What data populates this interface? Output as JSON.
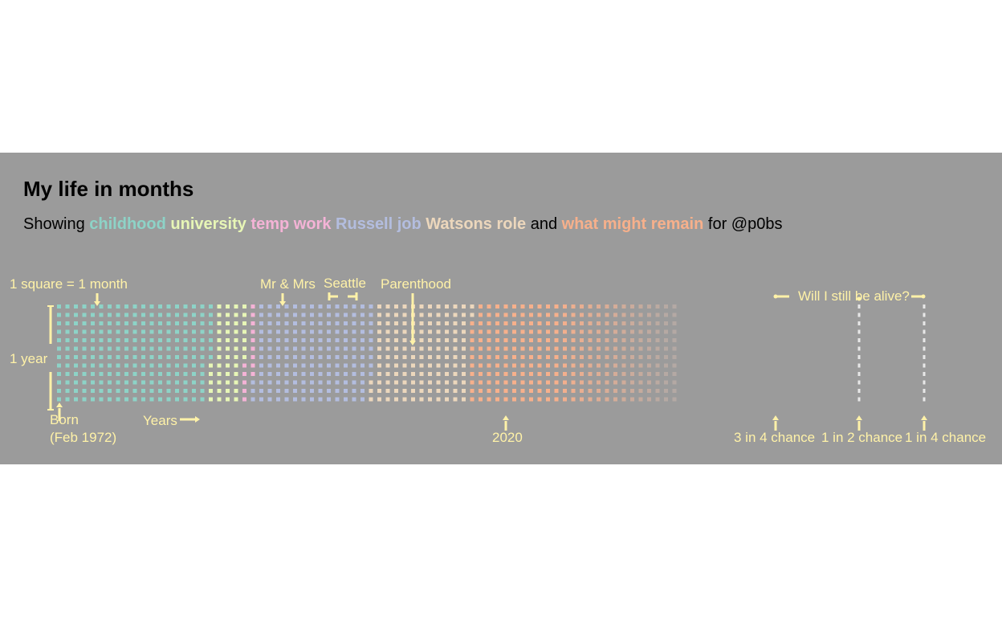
{
  "title": "My life in months",
  "subtitle": {
    "prefix": "Showing",
    "phases": [
      {
        "label": "childhood",
        "color": "#8dd3c7"
      },
      {
        "label": "university",
        "color": "#e7f6b6"
      },
      {
        "label": "temp work",
        "color": "#f4b3d6"
      },
      {
        "label": "Russell job",
        "color": "#b3bddf"
      },
      {
        "label": "Watsons role",
        "color": "#ecd7bc"
      },
      {
        "label": "what might remain",
        "color": "#f7b08b"
      }
    ],
    "and_word": "and",
    "suffix": "for @p0bs"
  },
  "colors": {
    "background": "#9b9b9b",
    "annotation": "#fff2a8"
  },
  "chart_data": {
    "type": "heatmap",
    "unit": "1 square = 1 month",
    "rows_label": "1 year",
    "columns_label": "Years",
    "start": "Feb 1972",
    "rows_per_column": 12,
    "total_columns": 74,
    "fade_from_column": 60,
    "phases": [
      {
        "label": "childhood",
        "color": "#8dd3c7",
        "months": 223
      },
      {
        "label": "university",
        "color": "#e7f6b6",
        "months": 48
      },
      {
        "label": "temp work",
        "color": "#f4b3d6",
        "months": 14
      },
      {
        "label": "Russell job",
        "color": "#b3bddf",
        "months": 168
      },
      {
        "label": "Watsons role",
        "color": "#ecd7bc",
        "months": 137
      },
      {
        "label": "what might remain",
        "color": "#f7b08b",
        "months": 298
      }
    ],
    "annotations": {
      "born_line1": "Born",
      "born_line2": "(Feb 1972)",
      "years": "Years",
      "unit": "1 square = 1 month",
      "year": "1 year",
      "marriage": "Mr & Mrs",
      "seattle": "Seattle",
      "parenthood": "Parenthood",
      "alive": "Will I still be alive?",
      "y2020": "2020",
      "chance_3in4": "3 in 4 chance",
      "chance_1in2": "1 in 2 chance",
      "chance_1in4": "1 in 4 chance"
    }
  }
}
